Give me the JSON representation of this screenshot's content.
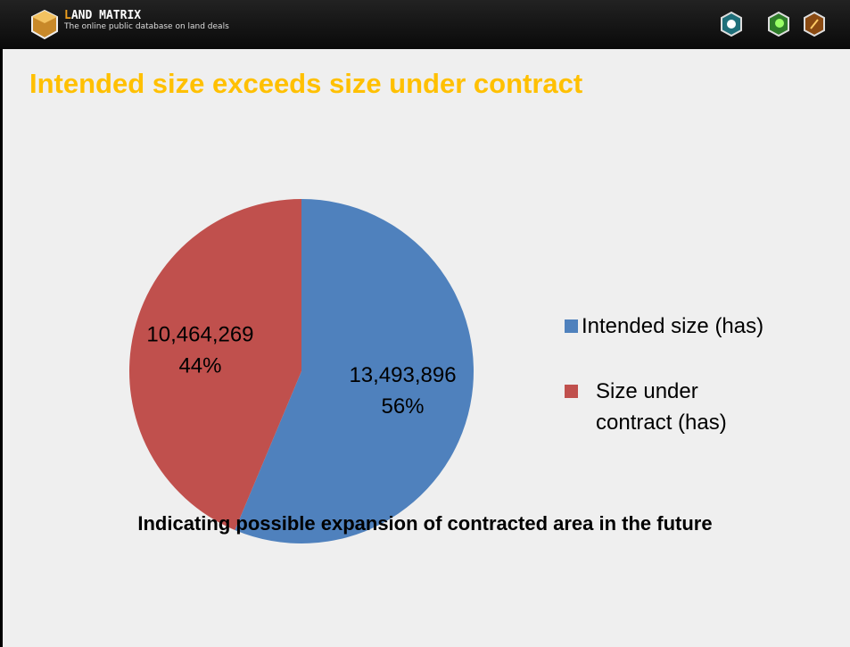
{
  "header": {
    "brand": "LAND MATRIX",
    "tagline": "The online public database on land deals"
  },
  "chart_data": {
    "type": "pie",
    "title": "Intended size exceeds size under contract",
    "categories": [
      "Intended size (has)",
      "Size under contract (has)"
    ],
    "values": [
      13493896,
      10464269
    ],
    "value_labels": [
      "13,493,896",
      "10,464,269"
    ],
    "percent_labels": [
      "56%",
      "44%"
    ],
    "colors": [
      "#4f81bd",
      "#c0504d"
    ],
    "legend": "right"
  },
  "footer": {
    "note": "Indicating possible expansion of contracted area in the future"
  }
}
